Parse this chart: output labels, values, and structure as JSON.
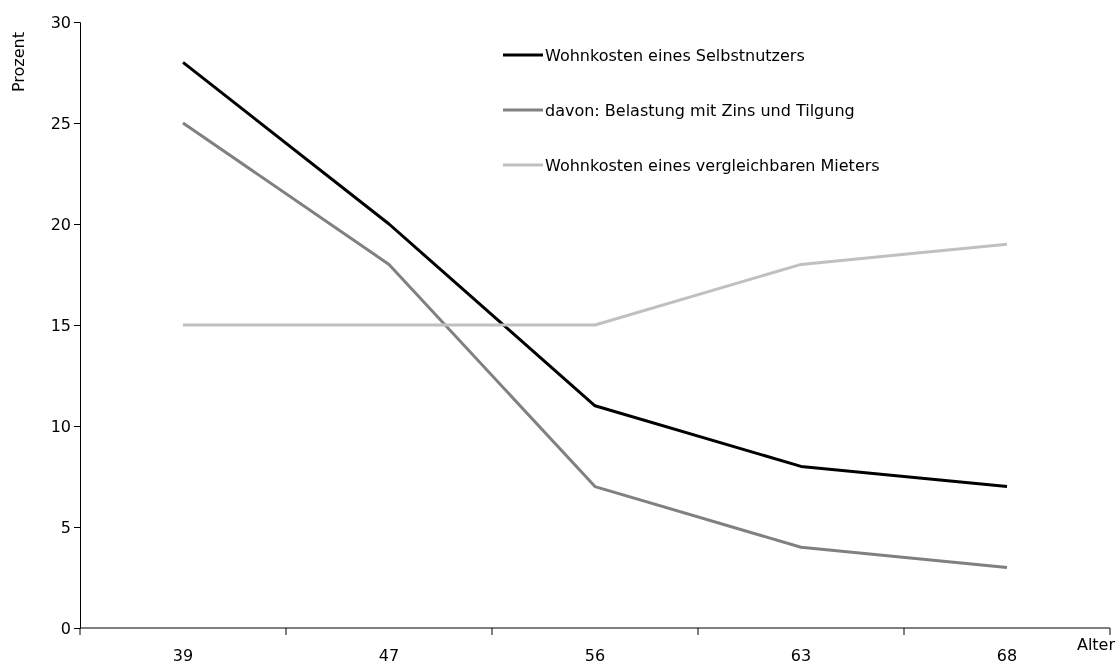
{
  "chart_data": {
    "type": "line",
    "xlabel": "Alter",
    "ylabel": "Prozent",
    "categories": [
      "39",
      "47",
      "56",
      "63",
      "68"
    ],
    "series": [
      {
        "name": "Wohnkosten eines Selbstnutzers",
        "color": "#000000",
        "values": [
          28,
          20,
          11,
          8,
          7
        ]
      },
      {
        "name": "davon: Belastung mit Zins und Tilgung",
        "color": "#808080",
        "values": [
          25,
          18,
          7,
          4,
          3
        ]
      },
      {
        "name": "Wohnkosten eines vergleichbaren Mieters",
        "color": "#c0c0c0",
        "values": [
          15,
          15,
          15,
          18,
          19
        ]
      }
    ],
    "ylim": [
      0,
      30
    ],
    "yticks": [
      0,
      5,
      10,
      15,
      20,
      25,
      30
    ],
    "grid": false,
    "legend": "top right",
    "marker": "none",
    "line_style": "solid"
  }
}
